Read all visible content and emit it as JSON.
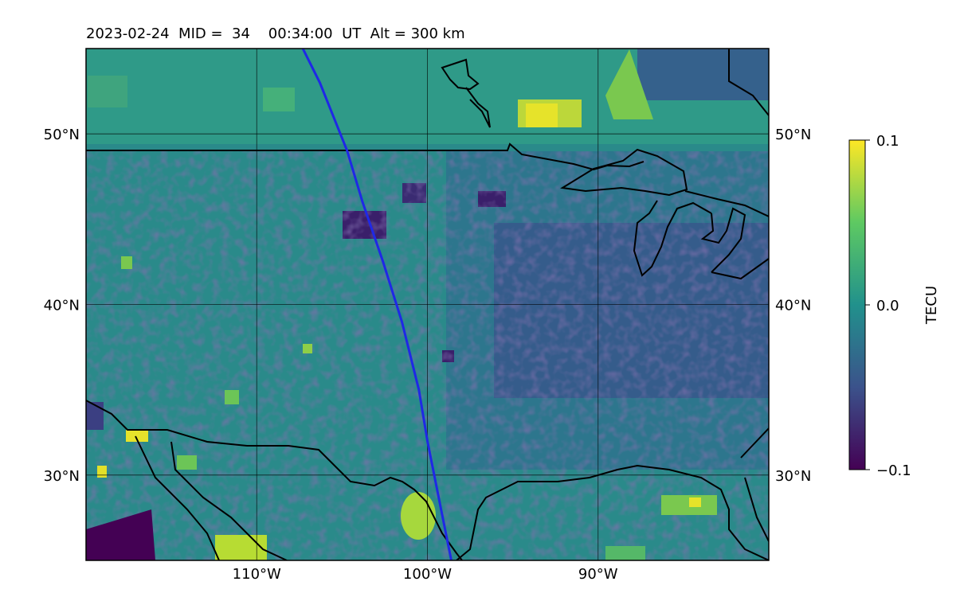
{
  "title": "2023-02-24  MID =  34    00:34:00  UT  Alt = 300 km",
  "map": {
    "extent": {
      "lon": [
        -120,
        -80
      ],
      "lat": [
        25,
        55
      ]
    },
    "lat_ticks": [
      {
        "value": 50,
        "label": "50°N"
      },
      {
        "value": 40,
        "label": "40°N"
      },
      {
        "value": 30,
        "label": "30°N"
      }
    ],
    "lon_ticks": [
      {
        "value": -110,
        "label": "110°W"
      },
      {
        "value": -100,
        "label": "100°W"
      },
      {
        "value": -90,
        "label": "90°W"
      }
    ],
    "track_color": "#1f28e6",
    "track": [
      [
        -107.3,
        55
      ],
      [
        -106.3,
        53
      ],
      [
        -104.7,
        49
      ],
      [
        -103.8,
        46
      ],
      [
        -102.6,
        42.5
      ],
      [
        -101.5,
        39
      ],
      [
        -100.5,
        35
      ],
      [
        -100,
        32
      ],
      [
        -99.2,
        28
      ],
      [
        -98.6,
        25
      ]
    ]
  },
  "colorbar": {
    "label": "TECU",
    "min": -0.1,
    "max": 0.1,
    "ticks": [
      {
        "value": 0.1,
        "label": "0.1"
      },
      {
        "value": 0.0,
        "label": "0.0"
      },
      {
        "value": -0.1,
        "label": "−0.1"
      }
    ],
    "colormap": [
      "#440154",
      "#3b528b",
      "#21918c",
      "#5ec962",
      "#fde725"
    ]
  }
}
